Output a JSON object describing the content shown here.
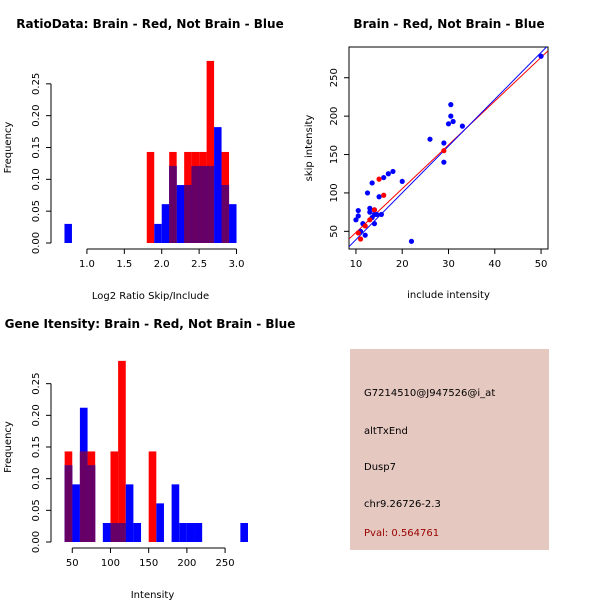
{
  "colors": {
    "red": "#ff0000",
    "blue": "#0000ff",
    "overlap": "#660066",
    "panel_bg": "#e5c8c0",
    "pval": "#990000",
    "black": "#000000"
  },
  "chart_data": [
    {
      "id": "ratio",
      "type": "bar",
      "subtype": "overlaid-histogram",
      "title": "RatioData: Brain - Red, Not Brain - Blue",
      "xlabel": "Log2 Ratio Skip/Include",
      "ylabel": "Frequency",
      "xlim": [
        0.6,
        3.1
      ],
      "ylim": [
        0,
        0.3
      ],
      "xticks": [
        1.0,
        1.5,
        2.0,
        2.5,
        3.0
      ],
      "xtick_labels": [
        "1.0",
        "1.5",
        "2.0",
        "2.5",
        "3.0"
      ],
      "yticks": [
        0,
        0.05,
        0.1,
        0.15,
        0.2,
        0.25
      ],
      "ytick_labels": [
        "0.00",
        "0.05",
        "0.10",
        "0.15",
        "0.20",
        "0.25"
      ],
      "series": [
        {
          "name": "Brain",
          "color": "red",
          "bins": [
            {
              "x0": 1.8,
              "x1": 1.9,
              "value": 0.143
            },
            {
              "x0": 2.1,
              "x1": 2.2,
              "value": 0.143
            },
            {
              "x0": 2.3,
              "x1": 2.4,
              "value": 0.143
            },
            {
              "x0": 2.4,
              "x1": 2.5,
              "value": 0.143
            },
            {
              "x0": 2.5,
              "x1": 2.6,
              "value": 0.143
            },
            {
              "x0": 2.6,
              "x1": 2.7,
              "value": 0.286
            },
            {
              "x0": 2.8,
              "x1": 2.9,
              "value": 0.143
            }
          ]
        },
        {
          "name": "Not Brain",
          "color": "blue",
          "bins": [
            {
              "x0": 0.7,
              "x1": 0.8,
              "value": 0.03
            },
            {
              "x0": 1.9,
              "x1": 2.0,
              "value": 0.03
            },
            {
              "x0": 2.0,
              "x1": 2.1,
              "value": 0.061
            },
            {
              "x0": 2.1,
              "x1": 2.2,
              "value": 0.121
            },
            {
              "x0": 2.2,
              "x1": 2.3,
              "value": 0.091
            },
            {
              "x0": 2.3,
              "x1": 2.4,
              "value": 0.091
            },
            {
              "x0": 2.4,
              "x1": 2.5,
              "value": 0.121
            },
            {
              "x0": 2.5,
              "x1": 2.6,
              "value": 0.121
            },
            {
              "x0": 2.6,
              "x1": 2.7,
              "value": 0.121
            },
            {
              "x0": 2.7,
              "x1": 2.8,
              "value": 0.182
            },
            {
              "x0": 2.8,
              "x1": 2.9,
              "value": 0.091
            },
            {
              "x0": 2.9,
              "x1": 3.0,
              "value": 0.061
            }
          ]
        }
      ]
    },
    {
      "id": "scatter",
      "type": "scatter",
      "title": "Brain - Red, Not Brain - Blue",
      "xlabel": "include intensity",
      "ylabel": "skip intensity",
      "xlim": [
        8.5,
        51.5
      ],
      "ylim": [
        27,
        290
      ],
      "xticks": [
        10,
        20,
        30,
        40,
        50
      ],
      "xtick_labels": [
        "10",
        "20",
        "30",
        "40",
        "50"
      ],
      "yticks": [
        50,
        100,
        150,
        200,
        250
      ],
      "ytick_labels": [
        "50",
        "100",
        "150",
        "200",
        "250"
      ],
      "series": [
        {
          "name": "Brain",
          "color": "red",
          "points": [
            [
              11,
              40
            ],
            [
              10.5,
              48
            ],
            [
              12,
              57
            ],
            [
              13,
              65
            ],
            [
              15,
              118
            ],
            [
              16,
              97
            ],
            [
              29,
              155
            ],
            [
              14,
              78
            ]
          ],
          "fit_line": {
            "x": [
              8.5,
              51.5
            ],
            "y": [
              40,
              285
            ]
          }
        },
        {
          "name": "Not Brain",
          "color": "blue",
          "points": [
            [
              10,
              65
            ],
            [
              10.5,
              70
            ],
            [
              10.5,
              77
            ],
            [
              11,
              50
            ],
            [
              11.5,
              60
            ],
            [
              12,
              45
            ],
            [
              12.5,
              100
            ],
            [
              13,
              75
            ],
            [
              13,
              80
            ],
            [
              13.5,
              68
            ],
            [
              13.5,
              113
            ],
            [
              14,
              72
            ],
            [
              14,
              60
            ],
            [
              14,
              78
            ],
            [
              14.5,
              72
            ],
            [
              15,
              95
            ],
            [
              15.5,
              72
            ],
            [
              16,
              120
            ],
            [
              17,
              125
            ],
            [
              18,
              128
            ],
            [
              20,
              115
            ],
            [
              22,
              37
            ],
            [
              26,
              170
            ],
            [
              29,
              140
            ],
            [
              29,
              165
            ],
            [
              30,
              190
            ],
            [
              30.5,
              200
            ],
            [
              30.5,
              215
            ],
            [
              31,
              193
            ],
            [
              33,
              187
            ],
            [
              50,
              278
            ]
          ],
          "fit_line": {
            "x": [
              8.5,
              51.5
            ],
            "y": [
              30,
              292
            ]
          }
        }
      ]
    },
    {
      "id": "intensity",
      "type": "bar",
      "subtype": "overlaid-histogram",
      "title": "Gene Itensity: Brain - Red, Not Brain - Blue",
      "xlabel": "Intensity",
      "ylabel": "Frequency",
      "xlim": [
        30,
        280
      ],
      "ylim": [
        0,
        0.3
      ],
      "xticks": [
        50,
        100,
        150,
        200,
        250
      ],
      "xtick_labels": [
        "50",
        "100",
        "150",
        "200",
        "250"
      ],
      "yticks": [
        0,
        0.05,
        0.1,
        0.15,
        0.2,
        0.25
      ],
      "ytick_labels": [
        "0.00",
        "0.05",
        "0.10",
        "0.15",
        "0.20",
        "0.25"
      ],
      "series": [
        {
          "name": "Brain",
          "color": "red",
          "bins": [
            {
              "x0": 40,
              "x1": 50,
              "value": 0.143
            },
            {
              "x0": 60,
              "x1": 70,
              "value": 0.143
            },
            {
              "x0": 70,
              "x1": 80,
              "value": 0.143
            },
            {
              "x0": 100,
              "x1": 110,
              "value": 0.143
            },
            {
              "x0": 110,
              "x1": 120,
              "value": 0.286
            },
            {
              "x0": 150,
              "x1": 160,
              "value": 0.143
            }
          ]
        },
        {
          "name": "Not Brain",
          "color": "blue",
          "bins": [
            {
              "x0": 40,
              "x1": 50,
              "value": 0.121
            },
            {
              "x0": 50,
              "x1": 60,
              "value": 0.091
            },
            {
              "x0": 60,
              "x1": 70,
              "value": 0.212
            },
            {
              "x0": 70,
              "x1": 80,
              "value": 0.121
            },
            {
              "x0": 90,
              "x1": 100,
              "value": 0.03
            },
            {
              "x0": 100,
              "x1": 110,
              "value": 0.03
            },
            {
              "x0": 110,
              "x1": 120,
              "value": 0.03
            },
            {
              "x0": 120,
              "x1": 130,
              "value": 0.091
            },
            {
              "x0": 130,
              "x1": 140,
              "value": 0.03
            },
            {
              "x0": 160,
              "x1": 170,
              "value": 0.061
            },
            {
              "x0": 180,
              "x1": 190,
              "value": 0.091
            },
            {
              "x0": 190,
              "x1": 200,
              "value": 0.03
            },
            {
              "x0": 200,
              "x1": 210,
              "value": 0.03
            },
            {
              "x0": 210,
              "x1": 220,
              "value": 0.03
            },
            {
              "x0": 270,
              "x1": 280,
              "value": 0.03
            }
          ]
        }
      ]
    }
  ],
  "info_panel": {
    "probe_id": "G7214510@J947526@i_at",
    "event_type": "altTxEnd",
    "gene": "Dusp7",
    "location": "chr9.26726-2.3",
    "pval": "Pval: 0.564761"
  }
}
